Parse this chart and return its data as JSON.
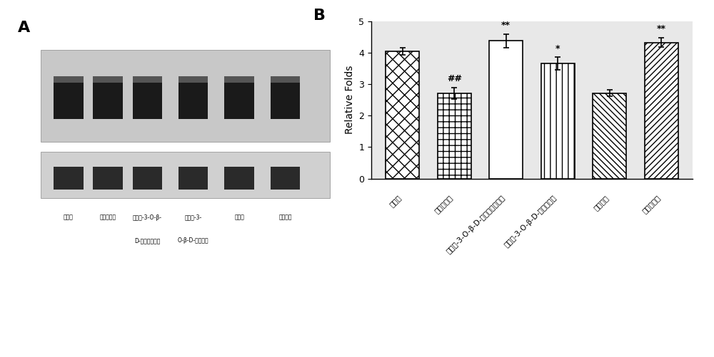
{
  "panel_B": {
    "categories": [
      "空白组",
      "高脂模型组",
      "槲皮素-3-O-β-D-葡萄糖醛酸苷组",
      "槲皮素-3-O-β-D-葡萄糖苷组",
      "槲皮素组",
      "米扎贝特组"
    ],
    "values": [
      4.05,
      2.72,
      4.38,
      3.67,
      2.72,
      4.33
    ],
    "errors": [
      0.12,
      0.18,
      0.22,
      0.2,
      0.1,
      0.15
    ],
    "significance": [
      "",
      "##",
      "**",
      "*",
      "",
      "**"
    ],
    "ylabel": "Relative Folds",
    "ylim": [
      0,
      5
    ],
    "yticks": [
      0,
      1,
      2,
      3,
      4,
      5
    ],
    "title": "B",
    "hatch_patterns": [
      "xx",
      "++",
      "=",
      "||",
      "\\\\\\\\",
      "////"
    ],
    "bar_edgecolor": "#000000",
    "bar_facecolor": "#ffffff",
    "background_color": "#e8e8e8"
  },
  "panel_A": {
    "title": "A",
    "labels_line1": [
      "空白组",
      "高脂模型组",
      "槲皮素-3-O-β-",
      "槲皮素-3-",
      "槲皮素",
      "米扎贝特"
    ],
    "labels_line2": [
      "",
      "",
      "D-葡萄糖醛酸苷",
      "O-β-D-葡萄糖苷",
      "",
      ""
    ],
    "background_color": "#f0f0f0"
  }
}
